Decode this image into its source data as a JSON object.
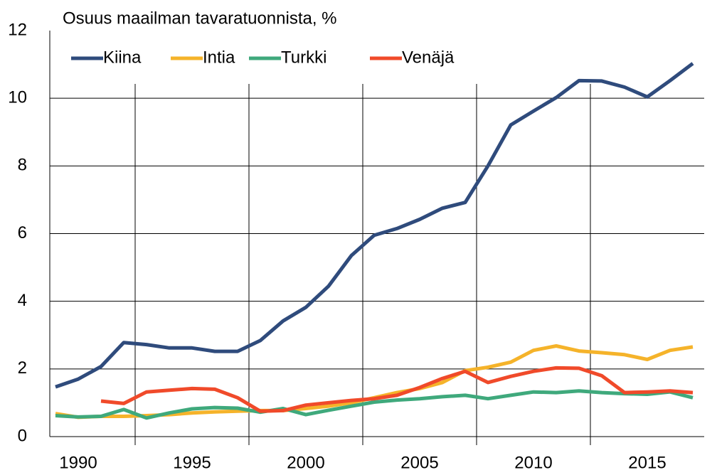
{
  "chart_data": {
    "type": "line",
    "title": "Osuus maailman tavaratuonnista, %",
    "x": [
      1989,
      1990,
      1991,
      1992,
      1993,
      1994,
      1995,
      1996,
      1997,
      1998,
      1999,
      2000,
      2001,
      2002,
      2003,
      2004,
      2005,
      2006,
      2007,
      2008,
      2009,
      2010,
      2011,
      2012,
      2013,
      2014,
      2015,
      2016,
      2017
    ],
    "series": [
      {
        "name": "Kiina",
        "color": "#2f4b7c",
        "values": [
          1.47,
          1.7,
          2.07,
          2.78,
          2.72,
          2.62,
          2.62,
          2.52,
          2.52,
          2.84,
          3.42,
          3.82,
          4.45,
          5.35,
          5.95,
          6.15,
          6.42,
          6.75,
          6.92,
          8.0,
          9.21,
          9.62,
          10.02,
          10.52,
          10.51,
          10.33,
          10.04,
          10.52,
          11.03
        ]
      },
      {
        "name": "Intia",
        "color": "#f5b32a",
        "values": [
          0.68,
          0.57,
          0.6,
          0.6,
          0.62,
          0.65,
          0.7,
          0.73,
          0.75,
          0.77,
          0.77,
          0.83,
          0.9,
          1.0,
          1.15,
          1.3,
          1.42,
          1.6,
          1.95,
          2.05,
          2.2,
          2.55,
          2.68,
          2.53,
          2.48,
          2.42,
          2.28,
          2.55,
          2.65
        ]
      },
      {
        "name": "Turkki",
        "color": "#3fa97c",
        "values": [
          0.62,
          0.58,
          0.6,
          0.8,
          0.55,
          0.7,
          0.82,
          0.86,
          0.84,
          0.72,
          0.83,
          0.65,
          0.78,
          0.9,
          1.02,
          1.08,
          1.12,
          1.18,
          1.22,
          1.12,
          1.22,
          1.32,
          1.3,
          1.35,
          1.3,
          1.27,
          1.25,
          1.32,
          1.15
        ]
      },
      {
        "name": "Venäjä",
        "color": "#f04a2a",
        "values": [
          null,
          null,
          1.05,
          0.98,
          1.32,
          1.37,
          1.42,
          1.4,
          1.15,
          0.75,
          0.77,
          0.93,
          1.0,
          1.07,
          1.12,
          1.22,
          1.45,
          1.72,
          1.93,
          1.6,
          1.78,
          1.93,
          2.03,
          2.02,
          1.8,
          1.3,
          1.32,
          1.35,
          1.3
        ]
      }
    ],
    "xlim": [
      1988.75,
      2017.5
    ],
    "xticks": [
      1990,
      1995,
      2000,
      2005,
      2010,
      2015
    ],
    "xgrid": [
      1992.5,
      1997.5,
      2002.5,
      2007.5,
      2012.5
    ],
    "ylim": [
      0,
      12
    ],
    "yticks": [
      0,
      2,
      4,
      6,
      8,
      10,
      12
    ],
    "grid": true,
    "legend": "top-left"
  }
}
